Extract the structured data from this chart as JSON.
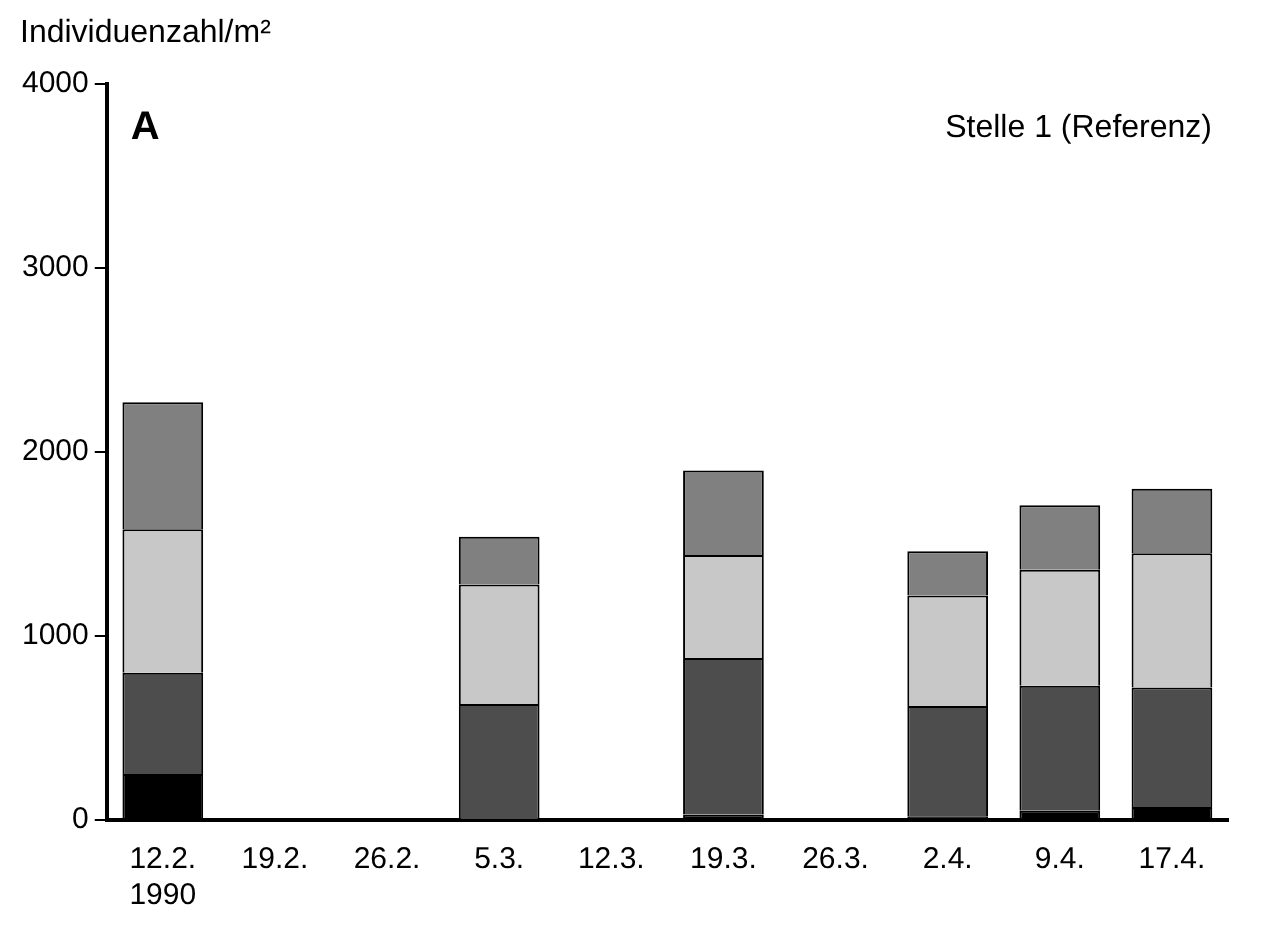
{
  "chart_data": {
    "type": "bar",
    "stacked": true,
    "ylabel": "Individuenzahl/m²",
    "annotations": [
      "A",
      "Stelle 1 (Referenz)"
    ],
    "categories": [
      "12.2.\n1990",
      "19.2.",
      "26.2.",
      "5.3.",
      "12.3.",
      "19.3.",
      "26.3.",
      "2.4.",
      "9.4.",
      "17.4."
    ],
    "series": [
      {
        "color": "#000000",
        "values": [
          250,
          null,
          null,
          0,
          null,
          30,
          null,
          20,
          50,
          70
        ]
      },
      {
        "color": "#4d4d4d",
        "values": [
          550,
          null,
          null,
          630,
          null,
          850,
          null,
          600,
          680,
          650
        ]
      },
      {
        "color": "#c8c8c8",
        "values": [
          780,
          null,
          null,
          650,
          null,
          560,
          null,
          600,
          630,
          730
        ]
      },
      {
        "color": "#808080",
        "values": [
          690,
          null,
          null,
          260,
          null,
          460,
          null,
          240,
          350,
          350
        ]
      }
    ],
    "ylim": [
      0,
      4000
    ],
    "yticks": [
      0,
      1000,
      2000,
      3000,
      4000
    ],
    "grid": false,
    "legend": false
  }
}
